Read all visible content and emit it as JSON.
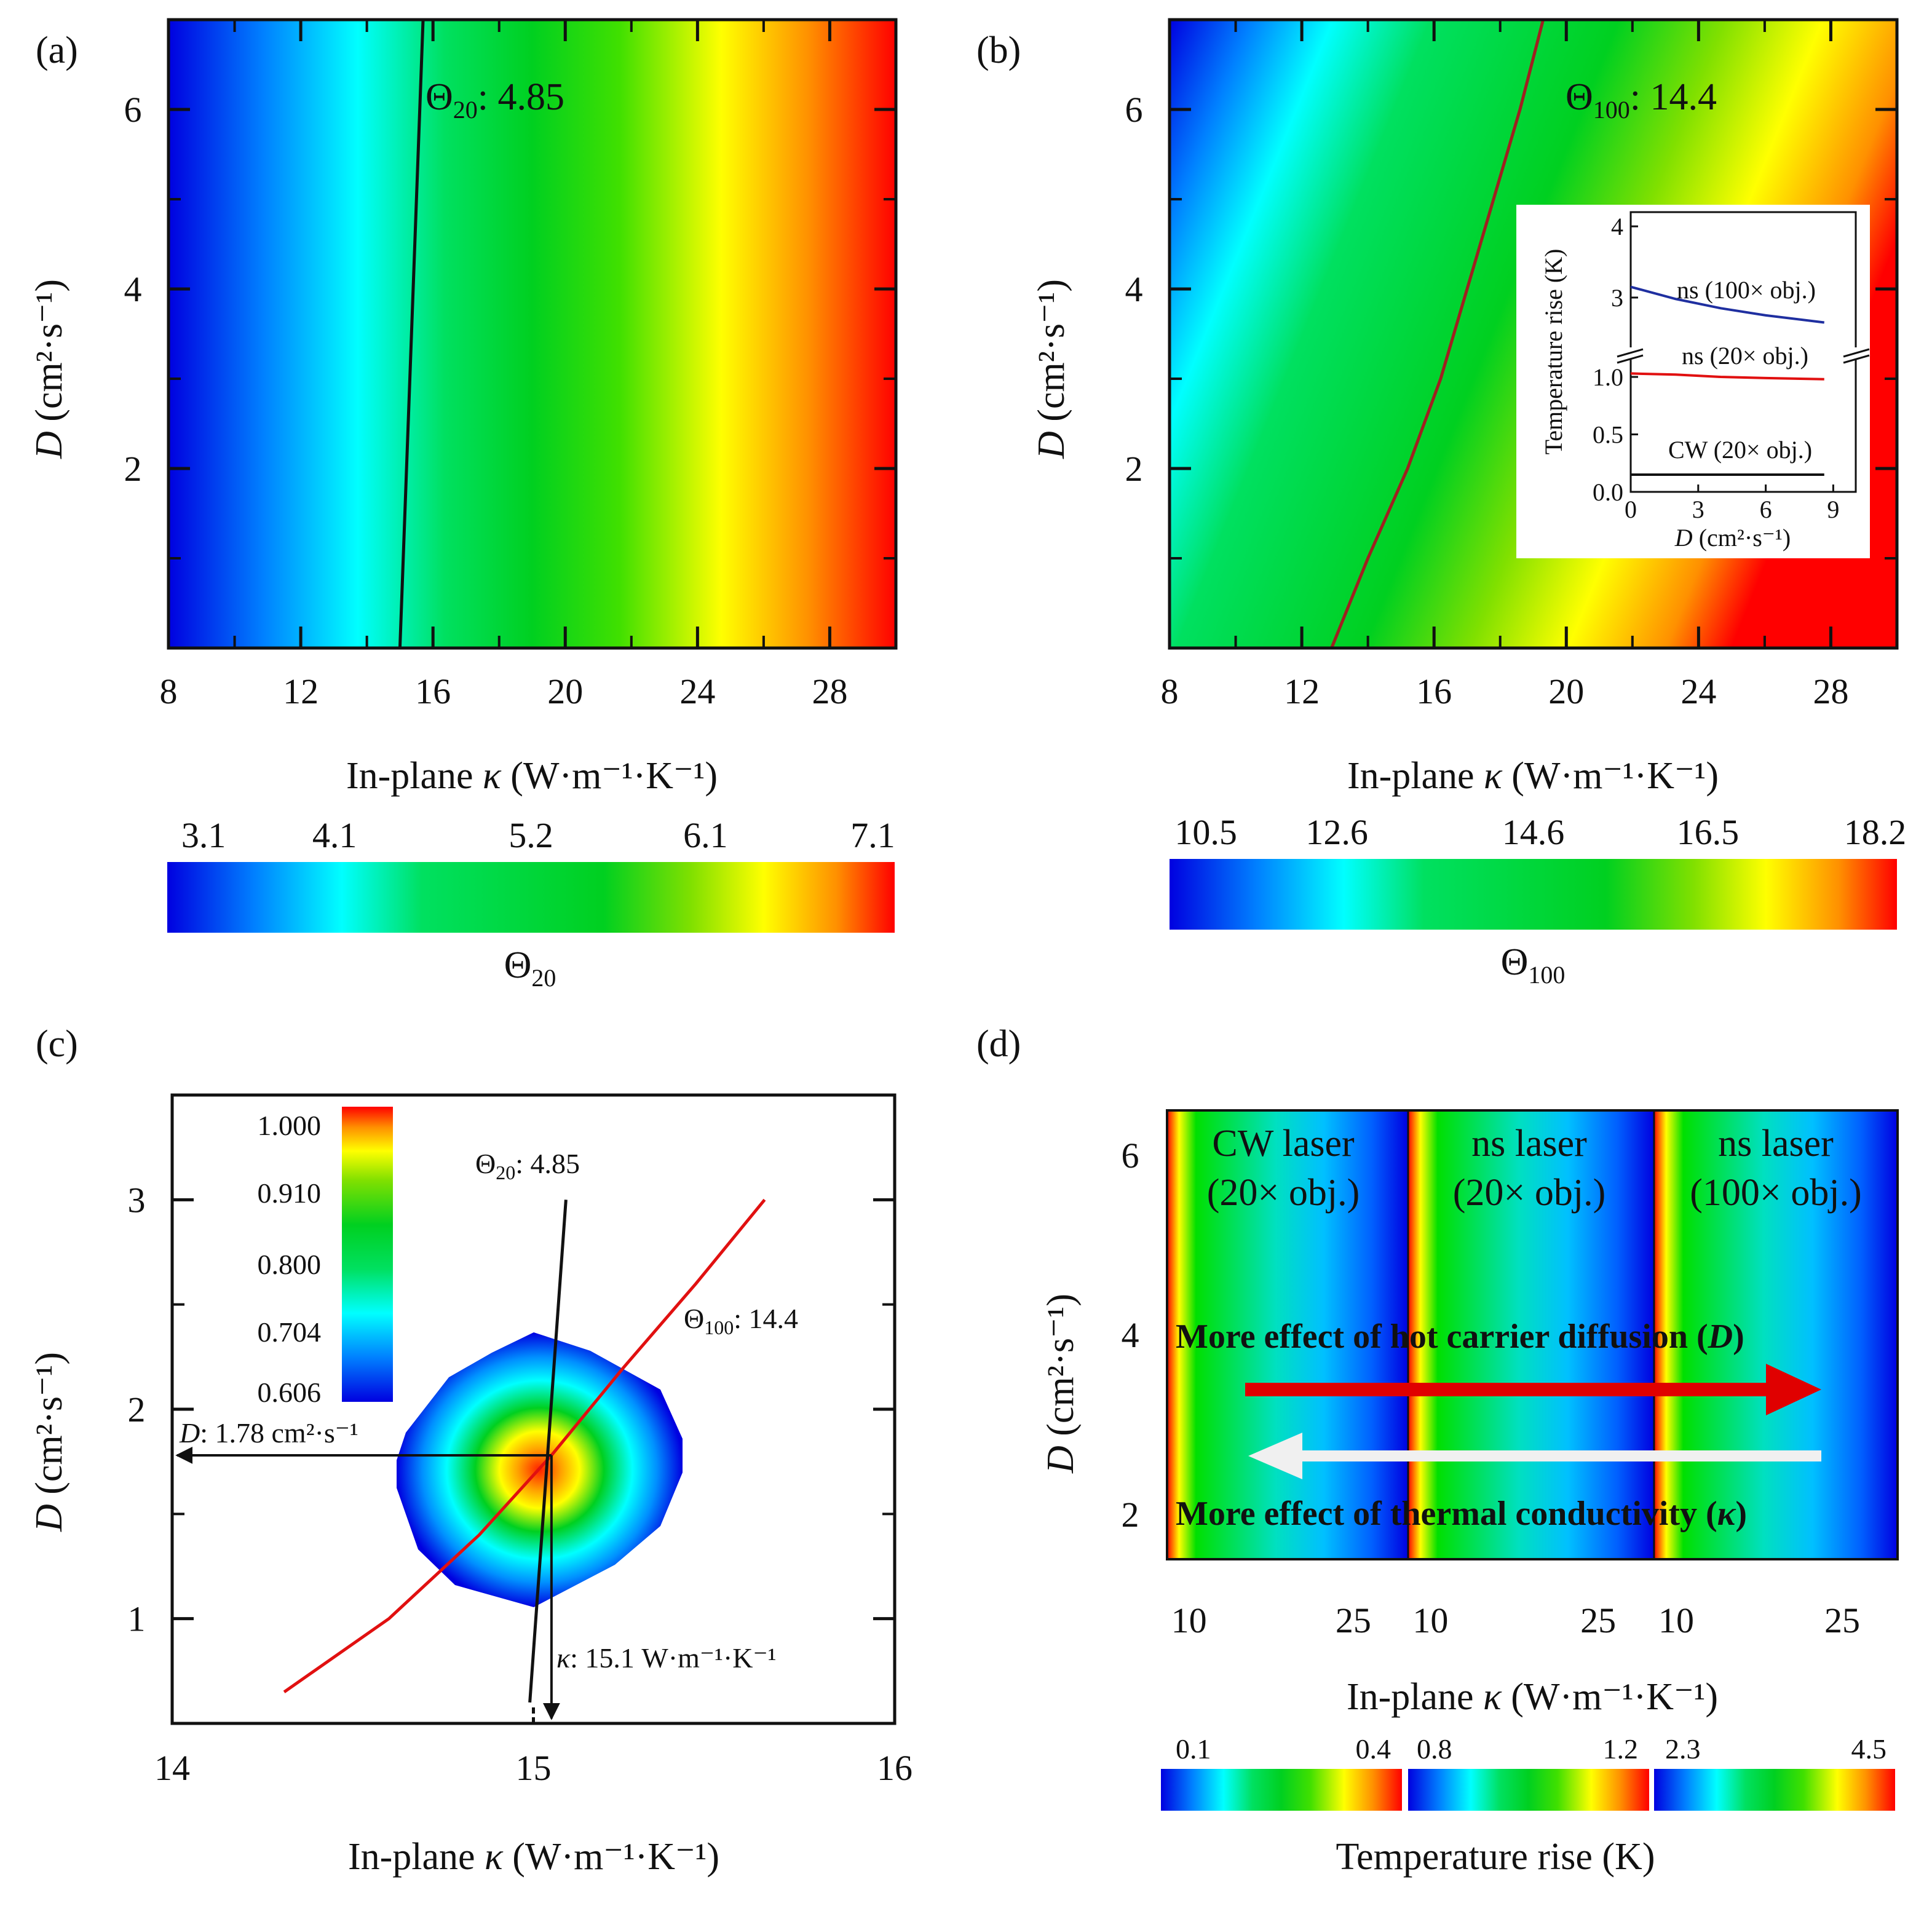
{
  "colors": {
    "jet": [
      "#0000e0",
      "#0080ff",
      "#00ffff",
      "#00e040",
      "#00d020",
      "#80e000",
      "#ffff00",
      "#ff8000",
      "#ff0000"
    ],
    "red_curve": "#e11010",
    "dark_red_curve": "#a02020",
    "blue_curve": "#1f2fa0",
    "arrow_red": "#e00000",
    "arrow_white": "#f0f0f0"
  },
  "chart_data": [
    {
      "panel": "(a)",
      "type": "heatmap",
      "title": "",
      "xlabel_italic": "κ",
      "xlabel_pre": "In-plane",
      "xlabel_post": "(W·m⁻¹·K⁻¹)",
      "ylabel_var": "D",
      "ylabel_unit": "(cm²·s⁻¹)",
      "xlim": [
        8,
        30
      ],
      "ylim": [
        0,
        7
      ],
      "xticks": [
        "8",
        "12",
        "16",
        "20",
        "24",
        "28"
      ],
      "xtick_values": [
        8,
        12,
        16,
        20,
        24,
        28
      ],
      "yticks": [
        "2",
        "4",
        "6"
      ],
      "ytick_values": [
        2,
        4,
        6
      ],
      "z_range": [
        3.1,
        7.1
      ],
      "contour": {
        "label_sym": "Θ",
        "label_sub": "20",
        "label_val": ": 4.85",
        "points": [
          [
            15.0,
            0
          ],
          [
            15.2,
            2
          ],
          [
            15.4,
            4
          ],
          [
            15.6,
            6
          ],
          [
            15.7,
            7
          ]
        ]
      },
      "colorbar_ticks": [
        "3.1",
        "4.1",
        "5.2",
        "6.1",
        "7.1"
      ],
      "colorbar_label_sym": "Θ",
      "colorbar_label_sub": "20"
    },
    {
      "panel": "(b)",
      "type": "heatmap",
      "xlabel_italic": "κ",
      "xlabel_pre": "In-plane",
      "xlabel_post": "(W·m⁻¹·K⁻¹)",
      "ylabel_var": "D",
      "ylabel_unit": "(cm²·s⁻¹)",
      "xlim": [
        8,
        30
      ],
      "ylim": [
        0,
        7
      ],
      "xticks": [
        "8",
        "12",
        "16",
        "20",
        "24",
        "28"
      ],
      "xtick_values": [
        8,
        12,
        16,
        20,
        24,
        28
      ],
      "yticks": [
        "2",
        "4",
        "6"
      ],
      "ytick_values": [
        2,
        4,
        6
      ],
      "z_range": [
        10.5,
        18.2
      ],
      "contour": {
        "label_sym": "Θ",
        "label_sub": "100",
        "label_val": ": 14.4",
        "points": [
          [
            12.9,
            0
          ],
          [
            14.0,
            1
          ],
          [
            15.2,
            2
          ],
          [
            16.2,
            3
          ],
          [
            17.0,
            4
          ],
          [
            17.8,
            5
          ],
          [
            18.6,
            6
          ],
          [
            19.3,
            7
          ]
        ]
      },
      "colorbar_ticks": [
        "10.5",
        "12.6",
        "14.6",
        "16.5",
        "18.2"
      ],
      "colorbar_label_sym": "Θ",
      "colorbar_label_sub": "100",
      "inset": {
        "type": "line",
        "ylabel": "Temperature rise (K)",
        "xlabel_var": "D",
        "xlabel_unit": "(cm²·s⁻¹)",
        "xticks": [
          "0",
          "3",
          "6",
          "9"
        ],
        "xtick_values": [
          0,
          3,
          6,
          9
        ],
        "xlim": [
          0,
          10
        ],
        "upper_yticks": [
          "3",
          "4"
        ],
        "upper_ylim": [
          2.3,
          4.2
        ],
        "lower_yticks": [
          "0.0",
          "0.5",
          "1.0"
        ],
        "lower_ylim": [
          0,
          1.15
        ],
        "series": [
          {
            "name": "ns (100× obj.)",
            "x": [
              0,
              2,
              4,
              6,
              8.6
            ],
            "y": [
              3.15,
              2.98,
              2.85,
              2.75,
              2.65
            ]
          },
          {
            "name": "ns (20× obj.)",
            "x": [
              0,
              2,
              4,
              6,
              8.6
            ],
            "y": [
              1.03,
              1.02,
              1.0,
              0.99,
              0.98
            ]
          },
          {
            "name": "CW (20× obj.)",
            "x": [
              0,
              8.6
            ],
            "y": [
              0.15,
              0.15
            ]
          }
        ]
      }
    },
    {
      "panel": "(c)",
      "type": "contour",
      "xlabel_italic": "κ",
      "xlabel_pre": "In-plane",
      "xlabel_post": "(W·m⁻¹·K⁻¹)",
      "ylabel_var": "D",
      "ylabel_unit": "(cm²·s⁻¹)",
      "xlim": [
        14,
        16
      ],
      "ylim": [
        0.5,
        3.5
      ],
      "xticks": [
        "14",
        "15",
        "16"
      ],
      "xtick_values": [
        14,
        15,
        16
      ],
      "yticks": [
        "1",
        "2",
        "3"
      ],
      "ytick_values": [
        1,
        2,
        3
      ],
      "colorbar_ticks": [
        "1.000",
        "0.910",
        "0.800",
        "0.704",
        "0.606"
      ],
      "center": [
        15.05,
        1.78
      ],
      "theta20_line": {
        "label_sym": "Θ",
        "label_sub": "20",
        "label_val": ": 4.85",
        "points": [
          [
            14.99,
            0.6
          ],
          [
            15.09,
            3.0
          ]
        ]
      },
      "theta100_line": {
        "label_sym": "Θ",
        "label_sub": "100",
        "label_val": ": 14.4",
        "points": [
          [
            14.31,
            0.65
          ],
          [
            14.6,
            1.0
          ],
          [
            14.85,
            1.4
          ],
          [
            15.05,
            1.78
          ],
          [
            15.25,
            2.2
          ],
          [
            15.45,
            2.6
          ],
          [
            15.64,
            3.0
          ]
        ]
      },
      "annotation_D_var": "D",
      "annotation_D_value": ": 1.78 cm²·s⁻¹",
      "annotation_k_var": "κ",
      "annotation_k_value": ": 15.1 W·m⁻¹·K⁻¹"
    },
    {
      "panel": "(d)",
      "type": "heatmap",
      "xlabel_italic": "κ",
      "xlabel_pre": "In-plane",
      "xlabel_post": "(W·m⁻¹·K⁻¹)",
      "ylabel_var": "D",
      "ylabel_unit": "(cm²·s⁻¹)",
      "yticks": [
        "2",
        "4",
        "6"
      ],
      "ytick_values": [
        2,
        4,
        6
      ],
      "ylim": [
        1.5,
        6.5
      ],
      "sub_xlim": [
        8,
        30
      ],
      "sub_xtick_values": [
        10,
        25
      ],
      "segments": [
        {
          "title1": "CW laser",
          "title2": "(20× obj.)",
          "cb_min": "0.1",
          "cb_max": "0.4",
          "xticks": [
            "10",
            "25"
          ]
        },
        {
          "title1": "ns laser",
          "title2": "(20× obj.)",
          "cb_min": "0.8",
          "cb_max": "1.2",
          "xticks": [
            "10",
            "25"
          ]
        },
        {
          "title1": "ns laser",
          "title2": "(100× obj.)",
          "cb_min": "2.3",
          "cb_max": "4.5",
          "xticks": [
            "10",
            "25"
          ]
        }
      ],
      "arrow_top_text": "More effect of hot carrier diffusion",
      "arrow_top_var": "D",
      "arrow_bottom_text": "More effect of thermal conductivity",
      "arrow_bottom_var": "κ",
      "colorbar_label": "Temperature rise (K)"
    }
  ]
}
